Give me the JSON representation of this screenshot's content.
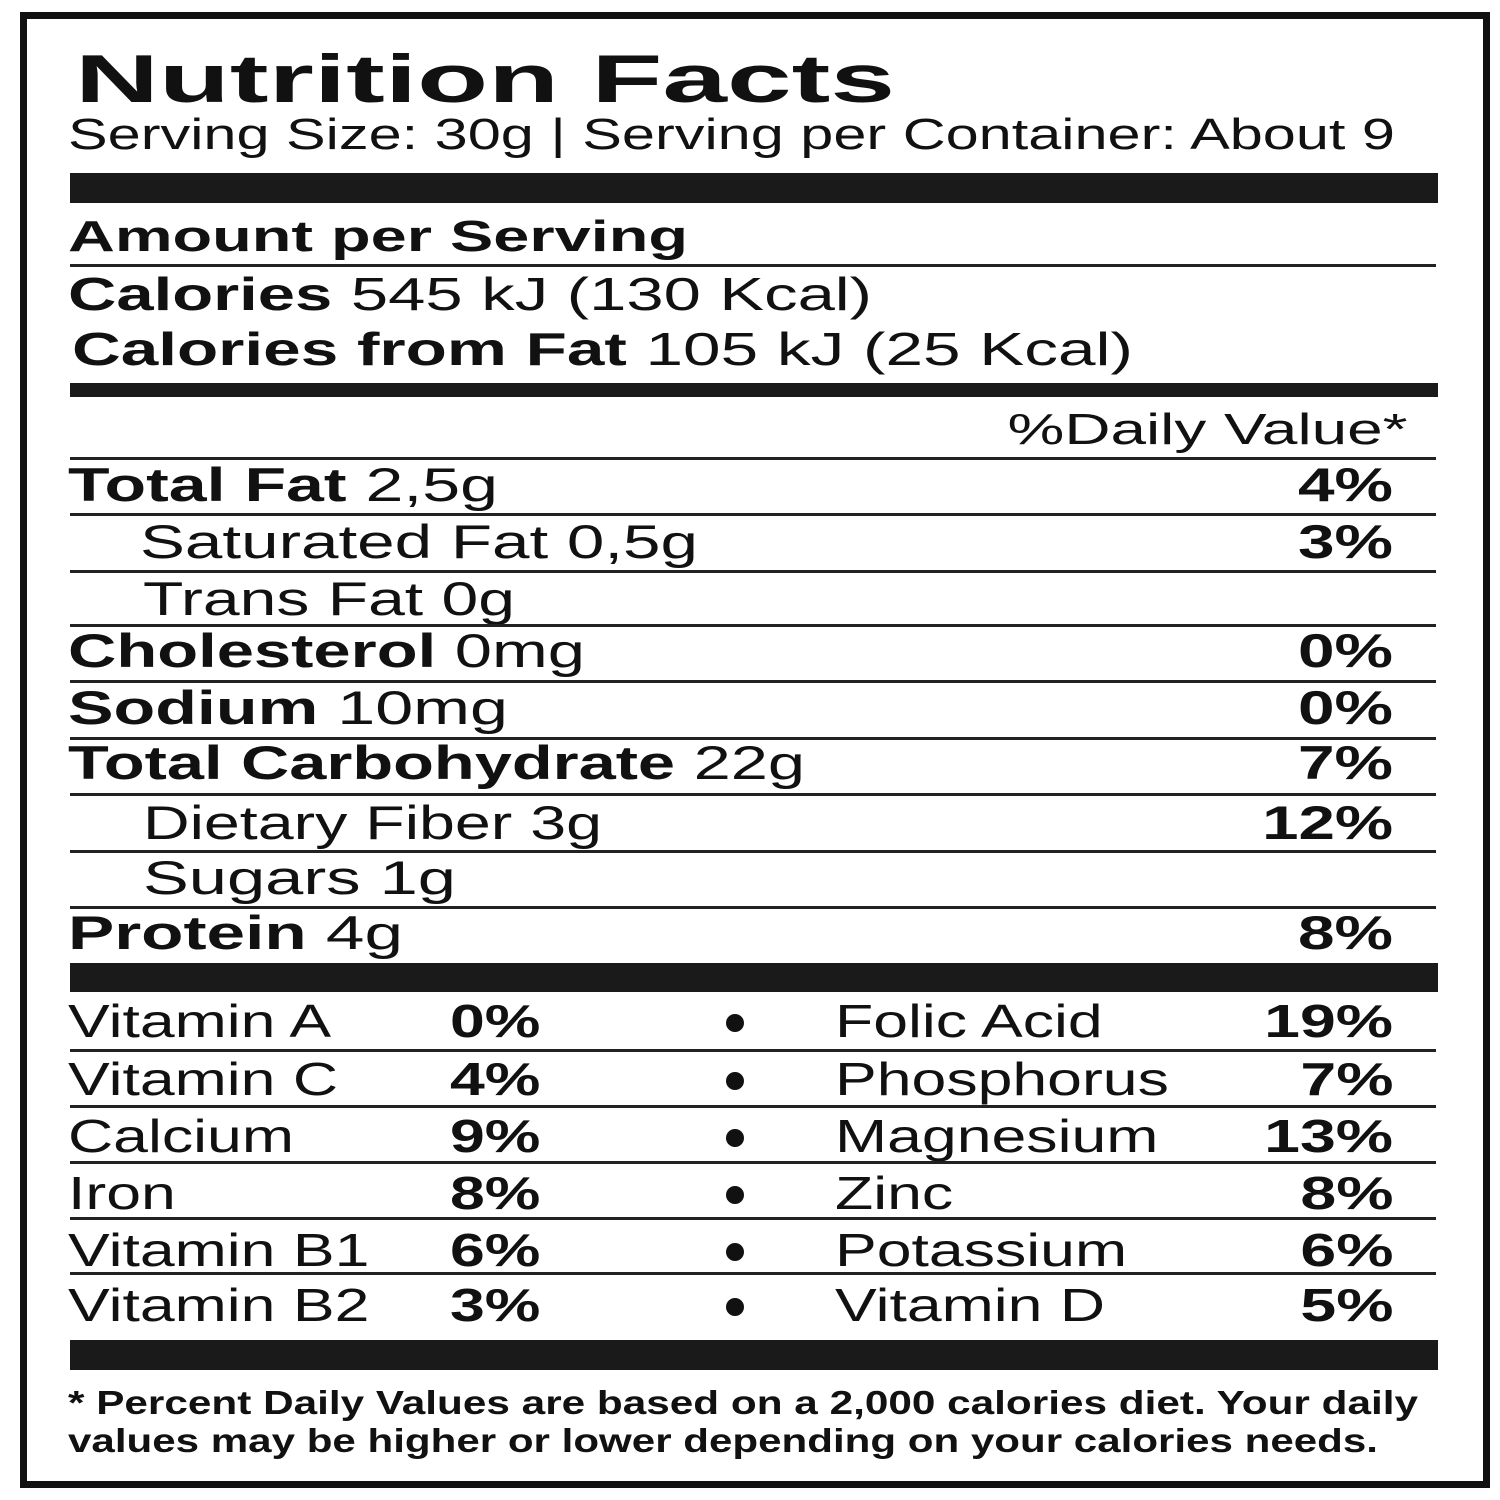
{
  "title": "Nutrition Facts",
  "serving": "Serving Size: 30g | Serving per Container: About 9",
  "amount_header": "Amount per Serving",
  "calories": {
    "label": "Calories",
    "value": "545 kJ  (130 Kcal)"
  },
  "calories_fat": {
    "label": "Calories from Fat",
    "value": "105 kJ  (25 Kcal)"
  },
  "dv_header": "%Daily Value*",
  "nutrients": [
    {
      "label": "Total Fat",
      "amount": "2,5g",
      "dv": "4%"
    },
    {
      "label": "Saturated Fat",
      "amount": "0,5g",
      "dv": "3%"
    },
    {
      "label": "Trans Fat",
      "amount": "0g",
      "dv": ""
    },
    {
      "label": "Cholesterol",
      "amount": "0mg",
      "dv": "0%"
    },
    {
      "label": "Sodium",
      "amount": "10mg",
      "dv": "0%"
    },
    {
      "label": "Total Carbohydrate",
      "amount": "22g",
      "dv": "7%"
    },
    {
      "label": "Dietary Fiber",
      "amount": "3g",
      "dv": "12%"
    },
    {
      "label": "Sugars",
      "amount": "1g",
      "dv": ""
    },
    {
      "label": "Protein",
      "amount": "4g",
      "dv": "8%"
    }
  ],
  "vitamins": [
    {
      "name": "Vitamin A",
      "pct": "0%",
      "name2": "Folic Acid",
      "pct2": "19%"
    },
    {
      "name": "Vitamin C",
      "pct": "4%",
      "name2": "Phosphorus",
      "pct2": "7%"
    },
    {
      "name": "Calcium",
      "pct": "9%",
      "name2": "Magnesium",
      "pct2": "13%"
    },
    {
      "name": "Iron",
      "pct": "8%",
      "name2": "Zinc",
      "pct2": "8%"
    },
    {
      "name": "Vitamin B1",
      "pct": "6%",
      "name2": "Potassium",
      "pct2": "6%"
    },
    {
      "name": "Vitamin B2",
      "pct": "3%",
      "name2": "Vitamin D",
      "pct2": "5%"
    }
  ],
  "footnote": [
    "* Percent Daily Values are based on a 2,000 calories diet. Your daily",
    "values may be higher or lower depending on your calories needs."
  ]
}
